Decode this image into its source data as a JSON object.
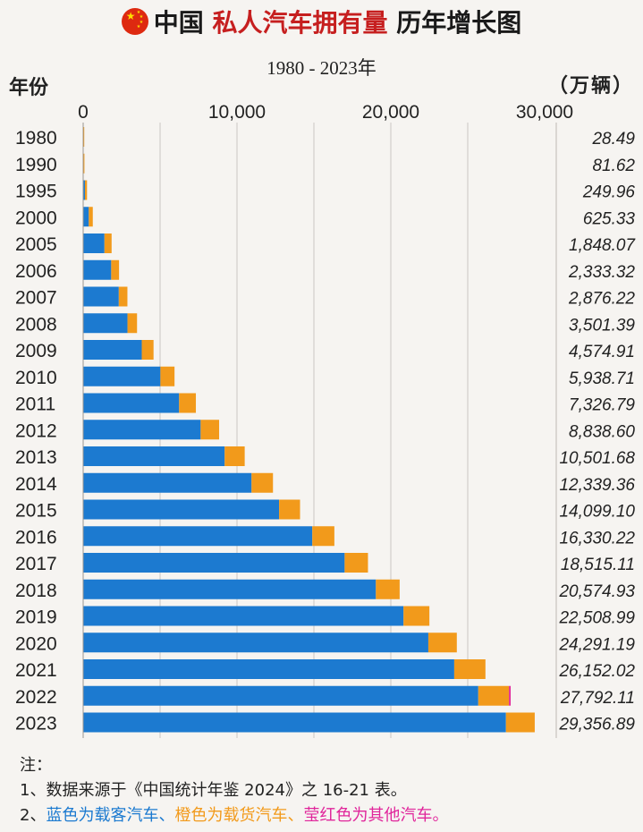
{
  "title": {
    "part1": "中国",
    "part2": "私人汽车拥有量",
    "part3": "历年增长图"
  },
  "subtitle": "1980 - 2023年",
  "y_axis_label": "年份",
  "unit_label": "（万辆）",
  "notes": {
    "heading": "注：",
    "line1": "1、数据来源于《中国统计年鉴 2024》之 16-21 表。",
    "line2_prefix": "2、",
    "line2_blue": "蓝色为载客汽车、",
    "line2_orange": "橙色为载货汽车、",
    "line2_magenta": "莹红色为其他汽车。"
  },
  "colors": {
    "passenger": "#1c7ad0",
    "truck": "#f29a1b",
    "other": "#e0259b",
    "title_red": "#c61f1f"
  },
  "chart_data": {
    "type": "bar",
    "orientation": "horizontal",
    "stacked": true,
    "xlim": [
      0,
      30000
    ],
    "x_ticks": [
      "0",
      "10,000",
      "20,000",
      "30,000"
    ],
    "grid": "vertical",
    "categories": [
      "1980",
      "1990",
      "1995",
      "2000",
      "2005",
      "2006",
      "2007",
      "2008",
      "2009",
      "2010",
      "2011",
      "2012",
      "2013",
      "2014",
      "2015",
      "2016",
      "2017",
      "2018",
      "2019",
      "2020",
      "2021",
      "2022",
      "2023"
    ],
    "series": [
      {
        "key": "passenger",
        "color": "#1c7ad0",
        "values": [
          0,
          0,
          115,
          365,
          1383,
          1823,
          2316,
          2881,
          3809,
          5021,
          6237,
          7637,
          9198,
          10946,
          12737,
          14896,
          16998,
          19029,
          20827,
          22439,
          24123,
          25686,
          27485
        ]
      },
      {
        "key": "truck",
        "color": "#f29a1b",
        "values": [
          28.49,
          81.62,
          134.96,
          260.33,
          465.07,
          510.32,
          560.22,
          620.39,
          765.91,
          917.71,
          1089.79,
          1201.6,
          1303.68,
          1393.36,
          1362.1,
          1434.22,
          1517.11,
          1545.93,
          1681.99,
          1852.19,
          2029.02,
          1998.11,
          1871.89
        ]
      },
      {
        "key": "other",
        "color": "#e0259b",
        "values": [
          0,
          0,
          0,
          0,
          0,
          0,
          0,
          0,
          0,
          0,
          0,
          0,
          0,
          0,
          0,
          0,
          0,
          0,
          0,
          0,
          0,
          108,
          0
        ]
      }
    ],
    "totals": [
      "28.49",
      "81.62",
      "249.96",
      "625.33",
      "1,848.07",
      "2,333.32",
      "2,876.22",
      "3,501.39",
      "4,574.91",
      "5,938.71",
      "7,326.79",
      "8,838.60",
      "10,501.68",
      "12,339.36",
      "14,099.10",
      "16,330.22",
      "18,515.11",
      "20,574.93",
      "22,508.99",
      "24,291.19",
      "26,152.02",
      "27,792.11",
      "29,356.89"
    ]
  }
}
